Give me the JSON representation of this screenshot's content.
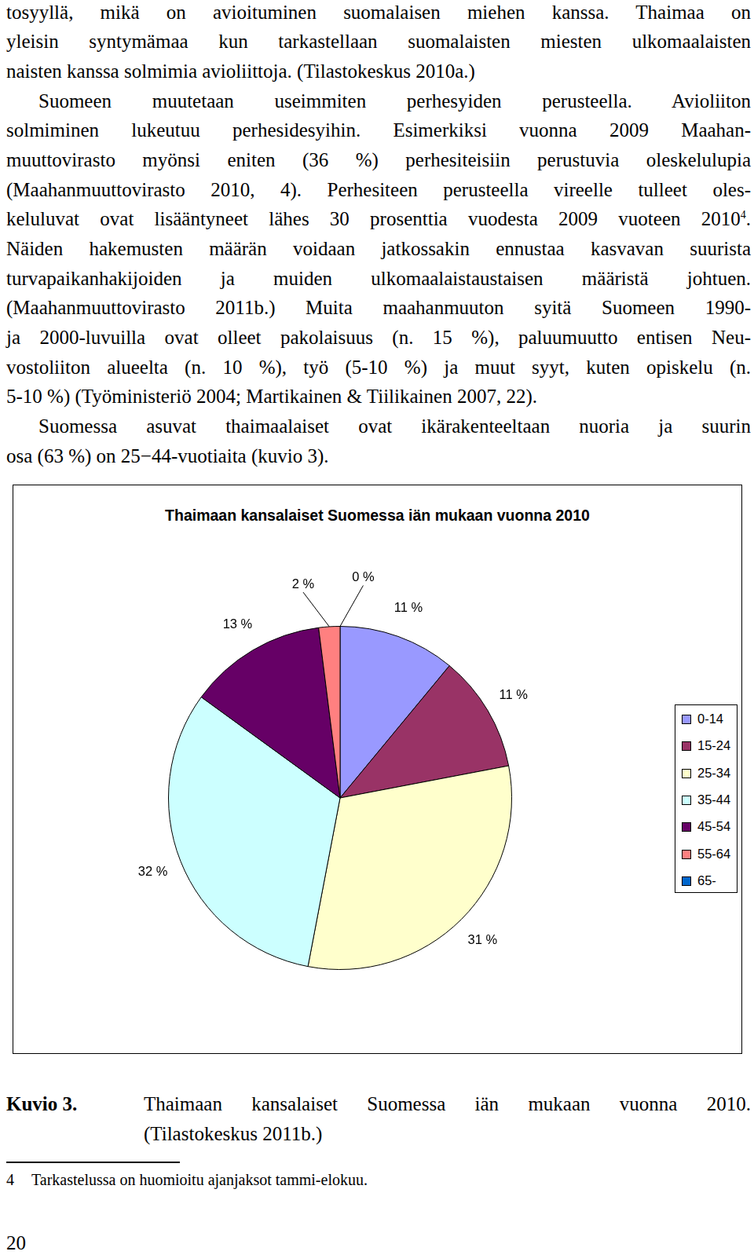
{
  "document": {
    "paragraphs": [
      {
        "lines": [
          "tosyyllä, mikä on avioituminen suomalaisen miehen kanssa. Thaimaa on",
          "yleisin syntymämaa kun tarkastellaan suomalaisten miesten ulkomaalaisten",
          "naisten kanssa solmimia avioliittoja. (Tilastokeskus 2010a.)"
        ]
      },
      {
        "lines": [
          "Suomeen muutetaan useimmiten perhesyiden perusteella. Avioliiton",
          "solmiminen lukeutuu perhesidesyihin. Esimerkiksi vuonna 2009 Maahan-",
          "muuttovirasto myönsi eniten (36 %) perhesiteisiin perustuvia oleskelulupia",
          "(Maahanmuuttovirasto 2010, 4). Perhesiteen perusteella vireelle tulleet oles-",
          [
            {
              "text": "keluluvat ovat lisääntyneet lähes 30 prosenttia vuodesta 2009 vuoteen 2010"
            },
            {
              "sup": "4"
            },
            {
              "text": "."
            }
          ],
          "Näiden hakemusten määrän voidaan jatkossakin ennustaa kasvavan suurista",
          "turvapaikanhakijoiden ja muiden ulkomaalaistaustaisen määristä johtuen.",
          "(Maahanmuuttovirasto 2011b.) Muita maahanmuuton syitä Suomeen 1990-",
          "ja 2000-luvuilla ovat olleet pakolaisuus (n. 15 %), paluumuutto entisen Neu-",
          "vostoliiton alueelta (n. 10 %), työ (5-10 %) ja muut syyt, kuten opiskelu (n.",
          "5-10 %) (Työministeriö 2004; Martikainen & Tiilikainen 2007, 22)."
        ]
      },
      {
        "lines": [
          "Suomessa asuvat thaimaalaiset ovat ikärakenteeltaan nuoria ja suurin",
          "osa (63 %) on 25−44-vuotiaita (kuvio 3)."
        ]
      }
    ],
    "caption": {
      "label": "Kuvio 3.",
      "lines": [
        "Thaimaan kansalaiset Suomessa iän mukaan vuonna 2010.",
        "(Tilastokeskus 2011b.)"
      ]
    },
    "footnote": {
      "marker": "4",
      "text": "Tarkastelussa on huomioitu ajanjaksot tammi-elokuu."
    },
    "page_number": "20"
  },
  "chart_data": {
    "type": "pie",
    "title": "Thaimaan kansalaiset Suomessa iän mukaan vuonna 2010",
    "categories": [
      "0-14",
      "15-24",
      "25-34",
      "35-44",
      "45-54",
      "55-64",
      "65-"
    ],
    "values": [
      11,
      11,
      31,
      32,
      13,
      2,
      0
    ],
    "value_labels": [
      "11 %",
      "11 %",
      "31 %",
      "32 %",
      "13 %",
      "2 %",
      "0 %"
    ],
    "colors": [
      "#9999ff",
      "#993366",
      "#ffffcc",
      "#ccffff",
      "#660066",
      "#ff8080",
      "#0066cc"
    ],
    "data_labels": true,
    "legend": "right"
  }
}
